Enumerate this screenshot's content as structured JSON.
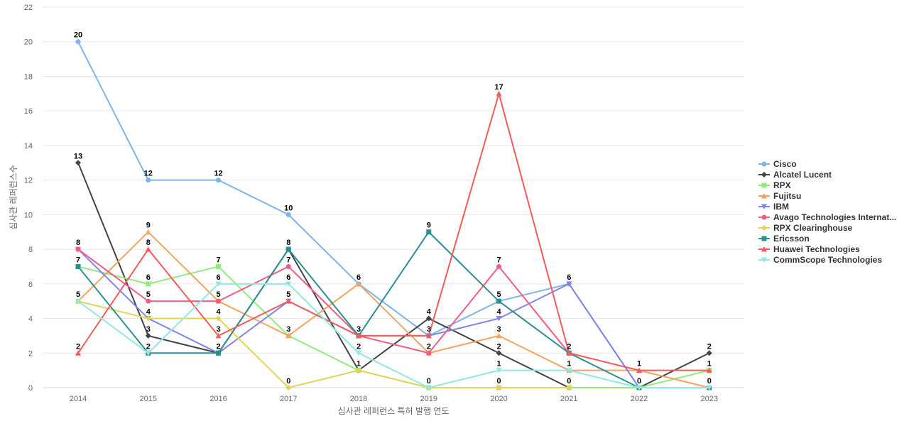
{
  "chart_data": {
    "type": "line",
    "xlabel": "심사관 레퍼런스 특허 발행 연도",
    "ylabel": "심사관 레퍼런스수",
    "ylim": [
      0,
      22
    ],
    "yticks": [
      0,
      2,
      4,
      6,
      8,
      10,
      12,
      14,
      16,
      18,
      20,
      22
    ],
    "grid": true,
    "legend_position": "right",
    "categories": [
      "2014",
      "2015",
      "2016",
      "2017",
      "2018",
      "2019",
      "2020",
      "2021",
      "2022",
      "2023"
    ],
    "series": [
      {
        "name": "Cisco",
        "color": "#7cb5ec",
        "marker": "circle",
        "values": [
          20,
          12,
          12,
          10,
          6,
          3,
          5,
          6,
          0,
          null
        ]
      },
      {
        "name": "Alcatel Lucent",
        "color": "#434348",
        "marker": "diamond",
        "values": [
          13,
          3,
          2,
          8,
          1,
          4,
          2,
          0,
          0,
          2
        ]
      },
      {
        "name": "RPX",
        "color": "#90ed7d",
        "marker": "square",
        "values": [
          7,
          6,
          7,
          3,
          1,
          0,
          0,
          0,
          0,
          1
        ]
      },
      {
        "name": "Fujitsu",
        "color": "#f7a35c",
        "marker": "triangle",
        "values": [
          5,
          9,
          5,
          3,
          6,
          2,
          3,
          1,
          1,
          0
        ]
      },
      {
        "name": "IBM",
        "color": "#8085e9",
        "marker": "triangle-down",
        "values": [
          8,
          4,
          2,
          5,
          3,
          3,
          4,
          6,
          0,
          null
        ]
      },
      {
        "name": "Avago Technologies Internat...",
        "color": "#f15c80",
        "marker": "circle",
        "values": [
          8,
          5,
          5,
          7,
          3,
          2,
          7,
          2,
          null,
          null
        ]
      },
      {
        "name": "RPX Clearinghouse",
        "color": "#e4d354",
        "marker": "diamond",
        "values": [
          5,
          4,
          4,
          0,
          1,
          0,
          0,
          0,
          null,
          null
        ]
      },
      {
        "name": "Ericsson",
        "color": "#2b908f",
        "marker": "square",
        "values": [
          7,
          2,
          2,
          8,
          3,
          9,
          5,
          2,
          0,
          0
        ]
      },
      {
        "name": "Huawei Technologies",
        "color": "#f45b5b",
        "marker": "triangle",
        "values": [
          2,
          8,
          3,
          5,
          3,
          3,
          17,
          2,
          1,
          1
        ]
      },
      {
        "name": "CommScope Technologies",
        "color": "#91e8e1",
        "marker": "triangle-down",
        "values": [
          5,
          2,
          6,
          6,
          2,
          0,
          1,
          1,
          0,
          0
        ]
      }
    ],
    "data_labels": [
      {
        "category": "2014",
        "text": "20",
        "series": "Cisco"
      },
      {
        "category": "2014",
        "text": "13",
        "series": "Alcatel Lucent"
      },
      {
        "category": "2014",
        "text": "8",
        "series": "IBM"
      },
      {
        "category": "2014",
        "text": "7",
        "series": "Ericsson"
      },
      {
        "category": "2014",
        "text": "5",
        "series": "Fujitsu"
      },
      {
        "category": "2014",
        "text": "2",
        "series": "Huawei Technologies"
      },
      {
        "category": "2015",
        "text": "12",
        "series": "Cisco"
      },
      {
        "category": "2015",
        "text": "9",
        "series": "Fujitsu"
      },
      {
        "category": "2015",
        "text": "8",
        "series": "Huawei Technologies"
      },
      {
        "category": "2015",
        "text": "6",
        "series": "RPX"
      },
      {
        "category": "2015",
        "text": "5",
        "series": "Avago Technologies Internat..."
      },
      {
        "category": "2015",
        "text": "4",
        "series": "IBM"
      },
      {
        "category": "2015",
        "text": "3",
        "series": "Alcatel Lucent"
      },
      {
        "category": "2015",
        "text": "2",
        "series": "Ericsson"
      },
      {
        "category": "2016",
        "text": "12",
        "series": "Cisco"
      },
      {
        "category": "2016",
        "text": "7",
        "series": "RPX"
      },
      {
        "category": "2016",
        "text": "6",
        "series": "CommScope Technologies"
      },
      {
        "category": "2016",
        "text": "5",
        "series": "Fujitsu"
      },
      {
        "category": "2016",
        "text": "4",
        "series": "RPX Clearinghouse"
      },
      {
        "category": "2016",
        "text": "3",
        "series": "Huawei Technologies"
      },
      {
        "category": "2016",
        "text": "2",
        "series": "Ericsson"
      },
      {
        "category": "2017",
        "text": "10",
        "series": "Cisco"
      },
      {
        "category": "2017",
        "text": "8",
        "series": "Ericsson"
      },
      {
        "category": "2017",
        "text": "7",
        "series": "Avago Technologies Internat..."
      },
      {
        "category": "2017",
        "text": "6",
        "series": "CommScope Technologies"
      },
      {
        "category": "2017",
        "text": "5",
        "series": "IBM"
      },
      {
        "category": "2017",
        "text": "3",
        "series": "RPX"
      },
      {
        "category": "2017",
        "text": "0",
        "series": "RPX Clearinghouse"
      },
      {
        "category": "2018",
        "text": "6",
        "series": "Fujitsu"
      },
      {
        "category": "2018",
        "text": "3",
        "series": "Ericsson"
      },
      {
        "category": "2018",
        "text": "2",
        "series": "CommScope Technologies"
      },
      {
        "category": "2018",
        "text": "1",
        "series": "RPX"
      },
      {
        "category": "2019",
        "text": "9",
        "series": "Ericsson"
      },
      {
        "category": "2019",
        "text": "4",
        "series": "Alcatel Lucent"
      },
      {
        "category": "2019",
        "text": "3",
        "series": "Cisco"
      },
      {
        "category": "2019",
        "text": "2",
        "series": "Avago Technologies Internat..."
      },
      {
        "category": "2019",
        "text": "0",
        "series": "CommScope Technologies"
      },
      {
        "category": "2020",
        "text": "17",
        "series": "Huawei Technologies"
      },
      {
        "category": "2020",
        "text": "7",
        "series": "Avago Technologies Internat..."
      },
      {
        "category": "2020",
        "text": "5",
        "series": "Ericsson"
      },
      {
        "category": "2020",
        "text": "4",
        "series": "IBM"
      },
      {
        "category": "2020",
        "text": "3",
        "series": "Fujitsu"
      },
      {
        "category": "2020",
        "text": "2",
        "series": "Alcatel Lucent"
      },
      {
        "category": "2020",
        "text": "1",
        "series": "CommScope Technologies"
      },
      {
        "category": "2020",
        "text": "0",
        "series": "RPX"
      },
      {
        "category": "2021",
        "text": "6",
        "series": "IBM"
      },
      {
        "category": "2021",
        "text": "2",
        "series": "Ericsson"
      },
      {
        "category": "2021",
        "text": "1",
        "series": "CommScope Technologies"
      },
      {
        "category": "2021",
        "text": "0",
        "series": "RPX"
      },
      {
        "category": "2022",
        "text": "1",
        "series": "Huawei Technologies"
      },
      {
        "category": "2022",
        "text": "0",
        "series": "Ericsson"
      },
      {
        "category": "2023",
        "text": "2",
        "series": "Alcatel Lucent"
      },
      {
        "category": "2023",
        "text": "1",
        "series": "RPX"
      },
      {
        "category": "2023",
        "text": "0",
        "series": "Ericsson"
      }
    ]
  }
}
